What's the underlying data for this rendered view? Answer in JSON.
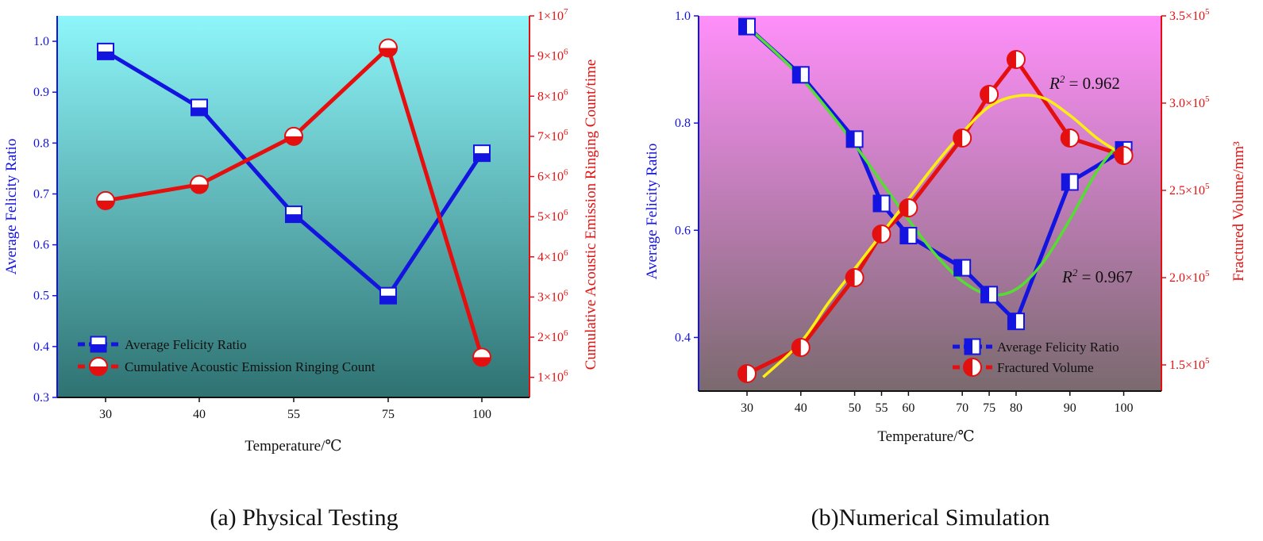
{
  "colors": {
    "blue": "#1414e0",
    "red": "#e41010",
    "green": "#55dd33",
    "yellow": "#ffee11",
    "panelA_top": "#8ef6fa",
    "panelA_bottom": "#2f7272",
    "panelB_top": "#ff8ffa",
    "panelB_bottom": "#7a6a6e"
  },
  "chart_data": [
    {
      "type": "line",
      "caption": "(a) Physical Testing",
      "xlabel": "Temperature/℃",
      "ylabel_left": "Average Felicity Ratio",
      "ylabel_right": "Cumulative Acoustic Emission Ringing Count/time",
      "categories": [
        "30",
        "40",
        "55",
        "75",
        "100"
      ],
      "yleft_range": [
        0.3,
        1.05
      ],
      "yleft_ticks": [
        "0.3",
        "0.4",
        "0.5",
        "0.6",
        "0.7",
        "0.8",
        "0.9",
        "1.0"
      ],
      "yright_range": [
        500000,
        10000000
      ],
      "yright_ticks": [
        {
          "base": "1×10",
          "exp": "6"
        },
        {
          "base": "2×10",
          "exp": "6"
        },
        {
          "base": "3×10",
          "exp": "6"
        },
        {
          "base": "4×10",
          "exp": "6"
        },
        {
          "base": "5×10",
          "exp": "6"
        },
        {
          "base": "6×10",
          "exp": "6"
        },
        {
          "base": "7×10",
          "exp": "6"
        },
        {
          "base": "8×10",
          "exp": "6"
        },
        {
          "base": "9×10",
          "exp": "6"
        },
        {
          "base": "1×10",
          "exp": "7"
        }
      ],
      "series": [
        {
          "name": "Average Felicity Ratio",
          "axis": "left",
          "values": [
            0.98,
            0.87,
            0.66,
            0.5,
            0.78
          ]
        },
        {
          "name": "Cumulative Acoustic Emission Ringing Count",
          "axis": "right",
          "values": [
            5400000,
            5800000,
            7000000,
            9200000,
            1500000
          ]
        }
      ],
      "legend_position": "bottom-left"
    },
    {
      "type": "line",
      "caption": "(b)Numerical Simulation",
      "xlabel": "Temperature/℃",
      "ylabel_left": "Average Felicity Ratio",
      "ylabel_right": "Fractured Volume/mm³",
      "x": [
        30,
        40,
        50,
        55,
        60,
        70,
        75,
        80,
        90,
        100
      ],
      "xlim": [
        21,
        107
      ],
      "yleft_range": [
        0.3,
        1.0
      ],
      "yleft_ticks": [
        "0.4",
        "0.6",
        "0.8",
        "1.0"
      ],
      "yright_range": [
        135000,
        350000
      ],
      "yright_ticks": [
        {
          "base": "1.5×10",
          "exp": "5"
        },
        {
          "base": "2.0×10",
          "exp": "5"
        },
        {
          "base": "2.5×10",
          "exp": "5"
        },
        {
          "base": "3.0×10",
          "exp": "5"
        },
        {
          "base": "3.5×10",
          "exp": "5"
        }
      ],
      "series": [
        {
          "name": "Average Felicity Ratio",
          "axis": "left",
          "values": [
            0.98,
            0.89,
            0.77,
            0.65,
            0.59,
            0.53,
            0.48,
            0.43,
            0.69,
            0.75
          ]
        },
        {
          "name": "Fractured Volume",
          "axis": "right",
          "values": [
            145000,
            160000,
            200000,
            225000,
            240000,
            280000,
            305000,
            325000,
            280000,
            270000
          ]
        }
      ],
      "fits": [
        {
          "name": "felicity-fit",
          "axis": "left",
          "x": [
            30,
            35,
            40,
            45,
            50,
            55,
            60,
            65,
            70,
            75,
            80,
            85,
            90,
            95,
            99
          ],
          "values": [
            0.98,
            0.935,
            0.885,
            0.825,
            0.76,
            0.69,
            0.62,
            0.555,
            0.505,
            0.48,
            0.49,
            0.54,
            0.62,
            0.71,
            0.76
          ]
        },
        {
          "name": "volume-fit",
          "axis": "right",
          "x": [
            33,
            40,
            45,
            50,
            55,
            60,
            65,
            70,
            75,
            80,
            85,
            90,
            95,
            99
          ],
          "values": [
            143000,
            163000,
            185000,
            205000,
            225000,
            245000,
            265000,
            283000,
            298000,
            304000,
            303000,
            293000,
            280000,
            272000
          ]
        }
      ],
      "annotations": [
        {
          "name": "r2-volume",
          "prefix": "R",
          "sup": "2",
          "suffix": " = 0.962"
        },
        {
          "name": "r2-felicity",
          "prefix": "R",
          "sup": "2",
          "suffix": " = 0.967"
        }
      ],
      "legend_position": "bottom-right"
    }
  ]
}
